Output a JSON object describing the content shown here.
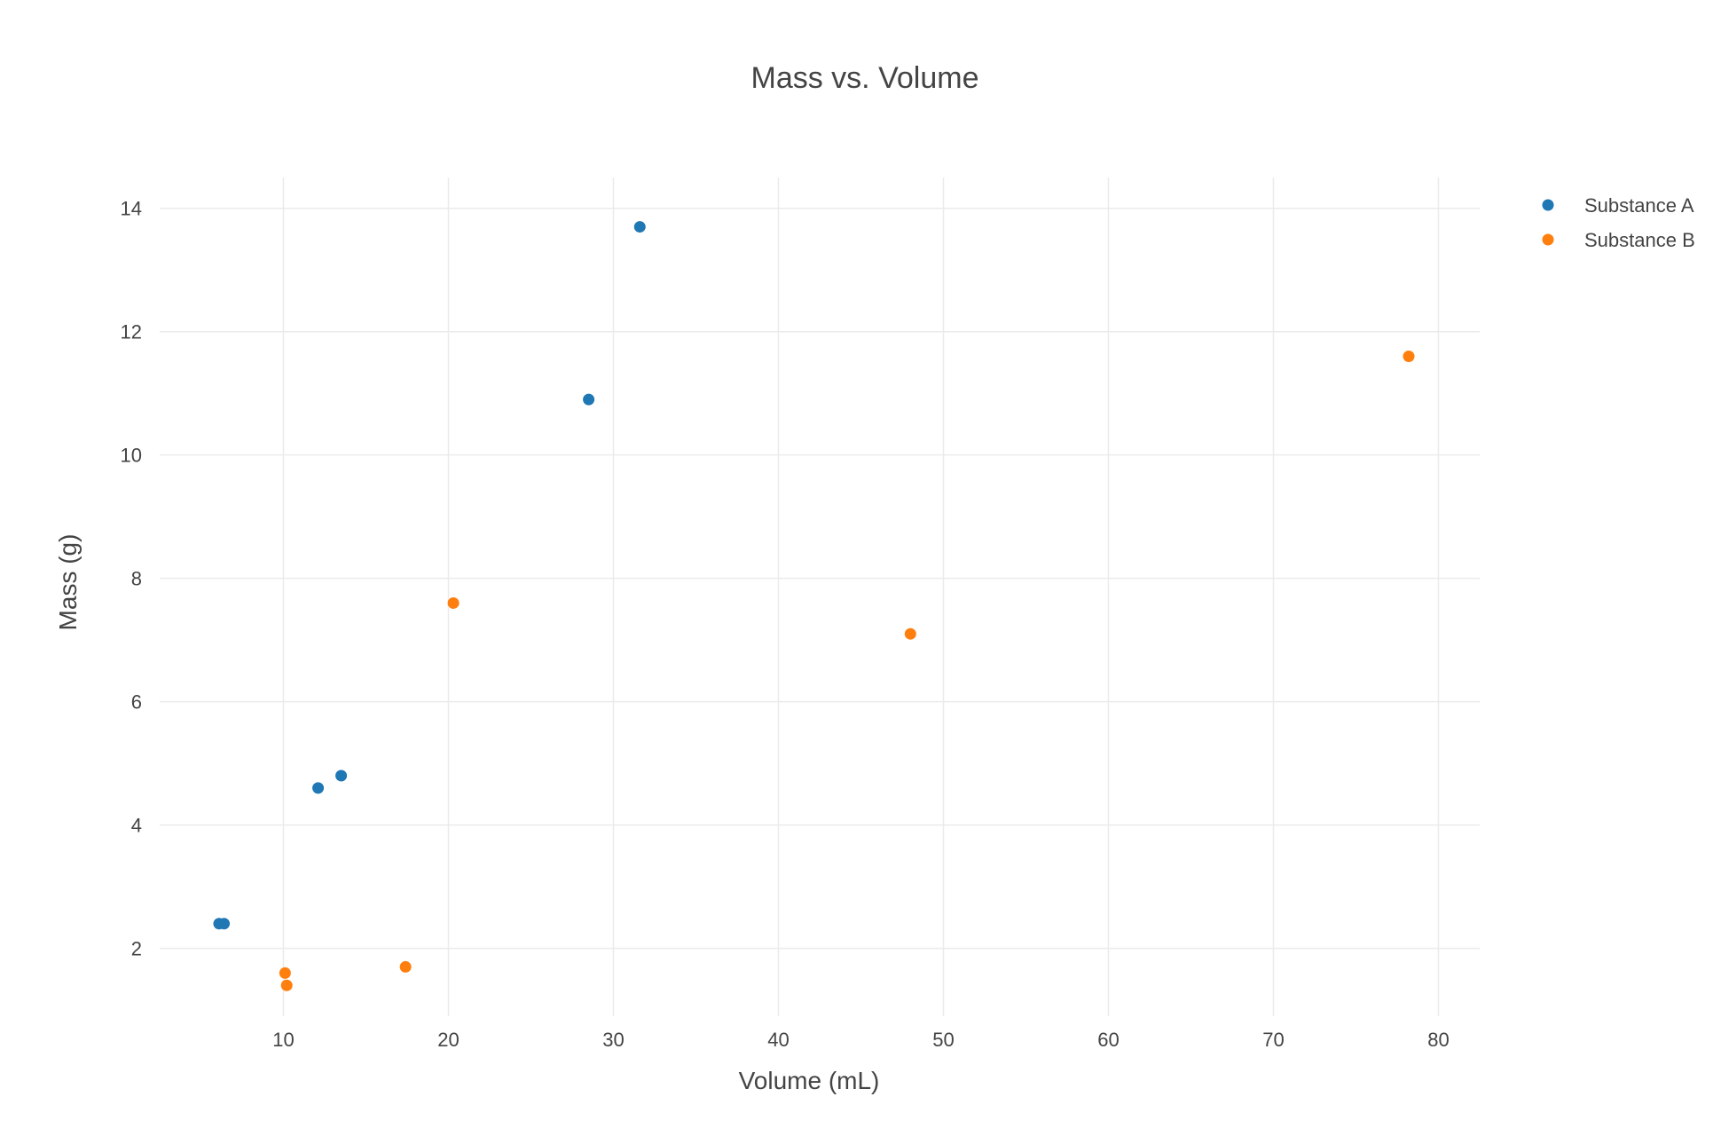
{
  "chart_data": {
    "type": "scatter",
    "title": "Mass vs. Volume",
    "xlabel": "Volume (mL)",
    "ylabel": "Mass (g)",
    "xlim": [
      2.5,
      82.5
    ],
    "ylim": [
      0.9,
      14.5
    ],
    "xticks": [
      10,
      20,
      30,
      40,
      50,
      60,
      70,
      80
    ],
    "yticks": [
      2,
      4,
      6,
      8,
      10,
      12,
      14
    ],
    "grid": true,
    "legend_position": "top-right",
    "series": [
      {
        "name": "Substance A",
        "color": "#1f77b4",
        "points": [
          {
            "x": 6.1,
            "y": 2.4
          },
          {
            "x": 6.4,
            "y": 2.4
          },
          {
            "x": 12.1,
            "y": 4.6
          },
          {
            "x": 13.5,
            "y": 4.8
          },
          {
            "x": 28.5,
            "y": 10.9
          },
          {
            "x": 31.6,
            "y": 13.7
          }
        ]
      },
      {
        "name": "Substance B",
        "color": "#ff7f0e",
        "points": [
          {
            "x": 10.1,
            "y": 1.6
          },
          {
            "x": 10.2,
            "y": 1.4
          },
          {
            "x": 17.4,
            "y": 1.7
          },
          {
            "x": 20.3,
            "y": 7.6
          },
          {
            "x": 48.0,
            "y": 7.1
          },
          {
            "x": 78.2,
            "y": 11.6
          }
        ]
      }
    ]
  }
}
